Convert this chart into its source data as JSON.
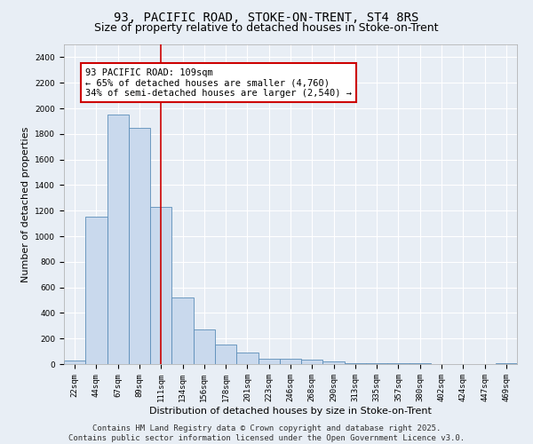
{
  "title_line1": "93, PACIFIC ROAD, STOKE-ON-TRENT, ST4 8RS",
  "title_line2": "Size of property relative to detached houses in Stoke-on-Trent",
  "xlabel": "Distribution of detached houses by size in Stoke-on-Trent",
  "ylabel": "Number of detached properties",
  "bin_labels": [
    "22sqm",
    "44sqm",
    "67sqm",
    "89sqm",
    "111sqm",
    "134sqm",
    "156sqm",
    "178sqm",
    "201sqm",
    "223sqm",
    "246sqm",
    "268sqm",
    "290sqm",
    "313sqm",
    "335sqm",
    "357sqm",
    "380sqm",
    "402sqm",
    "424sqm",
    "447sqm",
    "469sqm"
  ],
  "bar_values": [
    25,
    1150,
    1950,
    1850,
    1230,
    520,
    270,
    150,
    90,
    40,
    40,
    35,
    20,
    10,
    8,
    5,
    5,
    3,
    2,
    2,
    5
  ],
  "bar_color": "#c9d9ed",
  "bar_edge_color": "#5b8db8",
  "annotation_text": "93 PACIFIC ROAD: 109sqm\n← 65% of detached houses are smaller (4,760)\n34% of semi-detached houses are larger (2,540) →",
  "vline_x_index": 4.0,
  "vline_color": "#cc0000",
  "ylim": [
    0,
    2500
  ],
  "yticks": [
    0,
    200,
    400,
    600,
    800,
    1000,
    1200,
    1400,
    1600,
    1800,
    2000,
    2200,
    2400
  ],
  "background_color": "#e8eef5",
  "grid_color": "#ffffff",
  "footer_line1": "Contains HM Land Registry data © Crown copyright and database right 2025.",
  "footer_line2": "Contains public sector information licensed under the Open Government Licence v3.0.",
  "title_fontsize": 10,
  "subtitle_fontsize": 9,
  "axis_label_fontsize": 8,
  "tick_fontsize": 6.5,
  "annotation_fontsize": 7.5,
  "footer_fontsize": 6.5
}
